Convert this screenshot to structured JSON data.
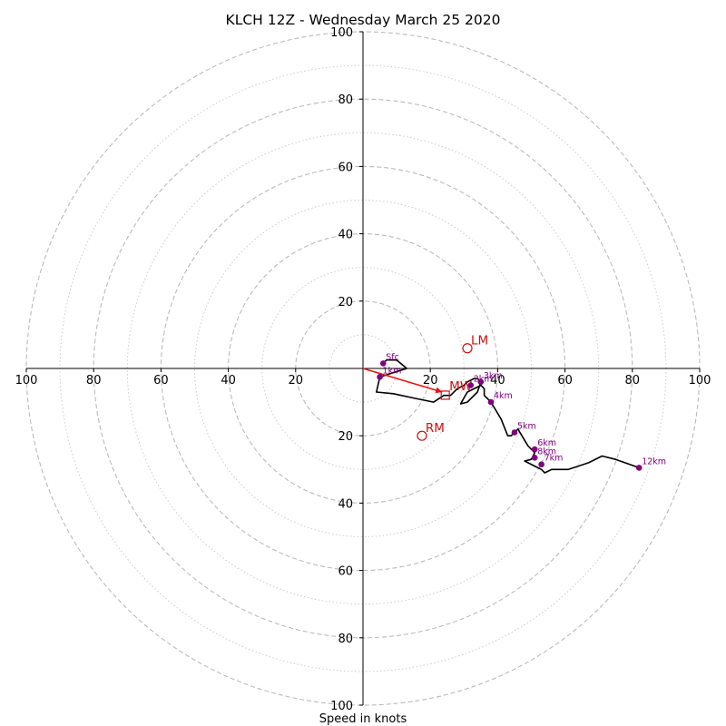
{
  "chart_data": {
    "type": "hodograph",
    "title": "KLCH 12Z - Wednesday March 25 2020",
    "xlabel": "Speed in knots",
    "ylabel": "",
    "xlim": [
      -100,
      100
    ],
    "ylim": [
      -100,
      100
    ],
    "ring_ticks": [
      20,
      40,
      60,
      80,
      100
    ],
    "minor_rings": [
      10,
      30,
      50,
      70,
      90
    ],
    "tick_labels": [
      "100",
      "80",
      "60",
      "40",
      "20",
      "20",
      "40",
      "60",
      "80",
      "100"
    ],
    "grid": true,
    "colors": {
      "trace": "#000000",
      "points": "#800080",
      "storm_motion": "#cc1111",
      "mean_wind_vector": "#ee1111",
      "grid": "#bbbbbb"
    },
    "hodograph_trace": [
      [
        6,
        1.5
      ],
      [
        7,
        2.5
      ],
      [
        10,
        2.5
      ],
      [
        13,
        0
      ],
      [
        5,
        -2.5
      ],
      [
        4,
        -7
      ],
      [
        9,
        -7.5
      ],
      [
        16,
        -9
      ],
      [
        21,
        -10
      ],
      [
        24,
        -8
      ],
      [
        26,
        -8
      ],
      [
        28,
        -6
      ],
      [
        30,
        -5
      ],
      [
        31,
        -4
      ],
      [
        33,
        -3
      ],
      [
        34,
        -3
      ],
      [
        35,
        -4
      ],
      [
        34,
        -7
      ],
      [
        31,
        -10
      ],
      [
        29,
        -10.5
      ],
      [
        31,
        -7
      ],
      [
        35,
        -5
      ],
      [
        36,
        -6
      ],
      [
        36,
        -8
      ],
      [
        38,
        -10
      ],
      [
        41,
        -15
      ],
      [
        43,
        -20
      ],
      [
        44,
        -20
      ],
      [
        46,
        -18
      ],
      [
        49,
        -23
      ],
      [
        51,
        -25
      ],
      [
        50,
        -27
      ],
      [
        48,
        -27.5
      ],
      [
        51,
        -29
      ],
      [
        53,
        -30
      ],
      [
        54,
        -31
      ],
      [
        56,
        -30
      ],
      [
        61,
        -30
      ],
      [
        67,
        -28
      ],
      [
        71,
        -26
      ],
      [
        75,
        -27
      ],
      [
        82,
        -29.5
      ]
    ],
    "height_labels": [
      {
        "label": "Sfc",
        "u": 6,
        "v": 1.5
      },
      {
        "label": "1km",
        "u": 5,
        "v": -2.5
      },
      {
        "label": "2km",
        "u": 32,
        "v": -5
      },
      {
        "label": "3km",
        "u": 35,
        "v": -4
      },
      {
        "label": "4km",
        "u": 38,
        "v": -10
      },
      {
        "label": "5km",
        "u": 45,
        "v": -19
      },
      {
        "label": "6km",
        "u": 51,
        "v": -24
      },
      {
        "label": "7km",
        "u": 53,
        "v": -28.5
      },
      {
        "label": "8km",
        "u": 51,
        "v": -26.5
      },
      {
        "label": "12km",
        "u": 82,
        "v": -29.5
      }
    ],
    "storm_motion": [
      {
        "label": "LM",
        "u": 31,
        "v": 6
      },
      {
        "label": "RM",
        "u": 17.5,
        "v": -20
      }
    ],
    "mean_wind": {
      "label": "MW",
      "u": 23.5,
      "v": -7
    }
  }
}
